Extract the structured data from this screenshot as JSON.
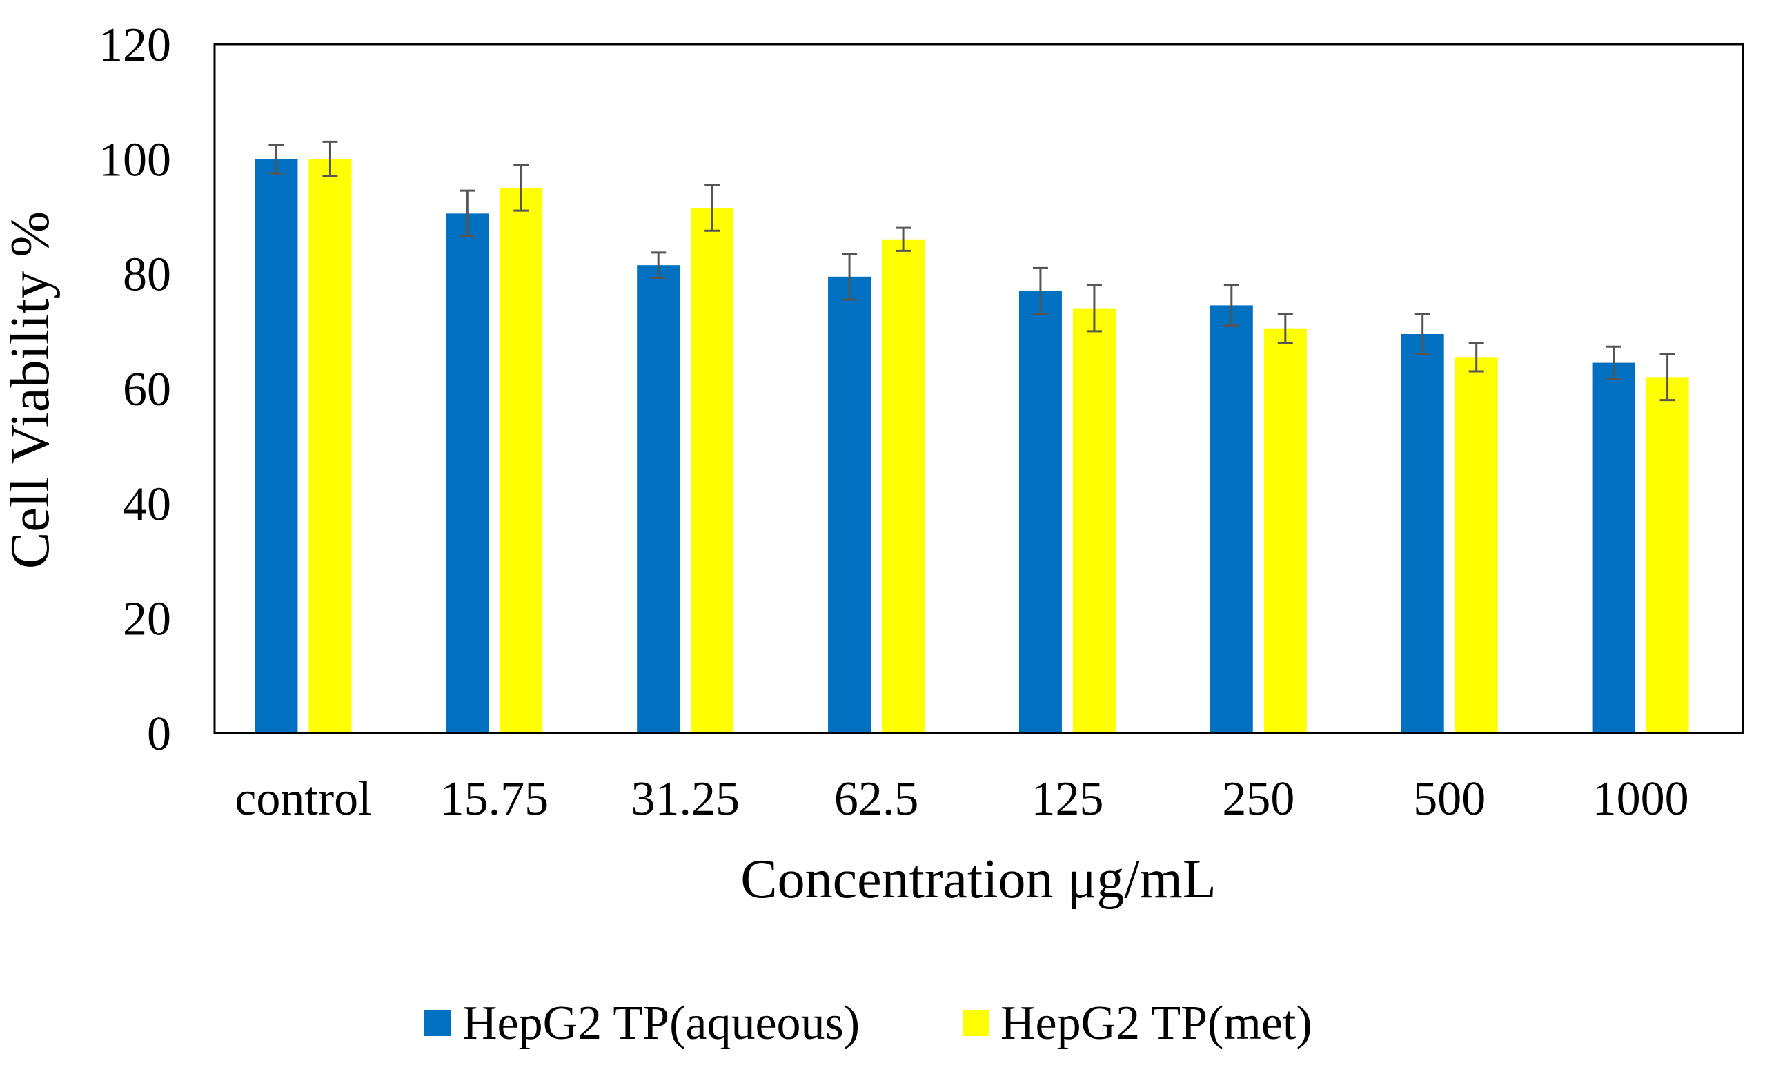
{
  "chart_data": {
    "type": "bar",
    "title": "",
    "xlabel": "Concentration μg/mL",
    "ylabel": "Cell Viability %",
    "ylim": [
      0,
      120
    ],
    "yticks": [
      "0",
      "20",
      "40",
      "60",
      "80",
      "100",
      "120"
    ],
    "ytick_values": [
      0,
      20,
      40,
      60,
      80,
      100,
      120
    ],
    "categories": [
      "control",
      "15.75",
      "31.25",
      "62.5",
      "125",
      "250",
      "500",
      "1000"
    ],
    "series": [
      {
        "name": "HepG2 TP(aqueous)",
        "color": "#0070C0",
        "values": [
          100,
          90.5,
          81.5,
          79.5,
          77,
          74.5,
          69.5,
          64.5
        ],
        "errors": [
          2.5,
          4,
          2.2,
          4,
          4,
          3.5,
          3.5,
          2.8
        ]
      },
      {
        "name": "HepG2 TP(met)",
        "color": "#FFFF00",
        "values": [
          100,
          95,
          91.5,
          86,
          74,
          70.5,
          65.5,
          62
        ],
        "errors": [
          3,
          4,
          4,
          2,
          4,
          2.5,
          2.5,
          4
        ]
      }
    ],
    "grid": false,
    "legend_position": "bottom-center"
  }
}
